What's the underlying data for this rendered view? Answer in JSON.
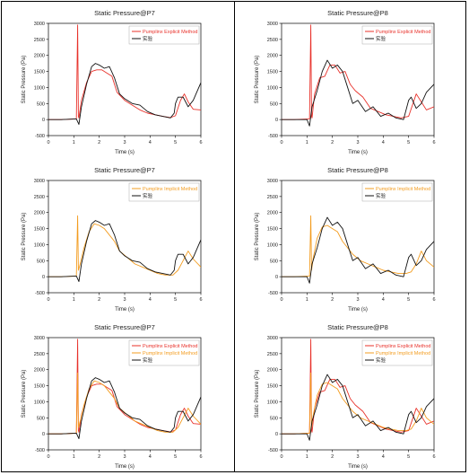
{
  "colors": {
    "red": "#e8312a",
    "orange": "#f39c1f",
    "black": "#111111"
  },
  "chart_data": [
    {
      "type": "line",
      "title": "Static Pressure@P7",
      "xlabel": "Time (s)",
      "ylabel": "Static Pressure (Pa)",
      "xlim": [
        0,
        6
      ],
      "ylim": [
        -500,
        3000
      ],
      "xticks": [
        "0",
        "1",
        "2",
        "3",
        "4",
        "5",
        "6"
      ],
      "yticks": [
        "-500",
        "0",
        "500",
        "1000",
        "1500",
        "2000",
        "2500",
        "3000"
      ],
      "legend_position": "top-right",
      "series": [
        {
          "name": "Pumplinx Explicit Method",
          "color": "red",
          "x": [
            0,
            0.5,
            1.1,
            1.15,
            1.18,
            1.2,
            1.3,
            1.5,
            1.7,
            1.9,
            2.1,
            2.3,
            2.5,
            2.7,
            3.0,
            3.3,
            3.6,
            3.9,
            4.2,
            4.5,
            4.8,
            5.0,
            5.2,
            5.35,
            5.5,
            5.7,
            6.0
          ],
          "y": [
            0,
            0,
            20,
            2950,
            100,
            50,
            600,
            1150,
            1500,
            1550,
            1550,
            1450,
            1350,
            850,
            600,
            450,
            300,
            200,
            150,
            100,
            60,
            120,
            600,
            800,
            550,
            320,
            300
          ]
        },
        {
          "name": "实验",
          "color": "black",
          "x": [
            0,
            0.5,
            1.1,
            1.2,
            1.3,
            1.5,
            1.7,
            1.85,
            2.0,
            2.2,
            2.4,
            2.6,
            2.8,
            3.0,
            3.3,
            3.6,
            3.9,
            4.2,
            4.5,
            4.8,
            4.95,
            5.0,
            5.1,
            5.3,
            5.5,
            5.7,
            6.0
          ],
          "y": [
            0,
            0,
            20,
            -150,
            400,
            1100,
            1650,
            1750,
            1700,
            1600,
            1650,
            1300,
            800,
            650,
            500,
            450,
            250,
            150,
            100,
            50,
            200,
            500,
            700,
            700,
            400,
            600,
            1150
          ]
        }
      ]
    },
    {
      "type": "line",
      "title": "Static Pressure@P8",
      "xlabel": "Time (s)",
      "ylabel": "Static Pressure (Pa)",
      "xlim": [
        0,
        6
      ],
      "ylim": [
        -500,
        3000
      ],
      "xticks": [
        "0",
        "1",
        "2",
        "3",
        "4",
        "5",
        "6"
      ],
      "yticks": [
        "-500",
        "0",
        "500",
        "1000",
        "1500",
        "2000",
        "2500",
        "3000"
      ],
      "legend_position": "top-right",
      "series": [
        {
          "name": "Pumplinx Explicit Method",
          "color": "red",
          "x": [
            0,
            0.5,
            1.1,
            1.15,
            1.18,
            1.2,
            1.3,
            1.5,
            1.7,
            1.9,
            2.1,
            2.3,
            2.5,
            2.7,
            2.9,
            3.2,
            3.5,
            3.8,
            4.1,
            4.4,
            4.7,
            5.0,
            5.3,
            5.5,
            5.7,
            6.0
          ],
          "y": [
            0,
            0,
            20,
            2950,
            100,
            50,
            800,
            1300,
            1350,
            1700,
            1700,
            1450,
            1500,
            1100,
            900,
            700,
            350,
            250,
            150,
            100,
            50,
            100,
            800,
            550,
            300,
            400
          ]
        },
        {
          "name": "实验",
          "color": "black",
          "x": [
            0,
            0.5,
            1.0,
            1.1,
            1.2,
            1.4,
            1.6,
            1.8,
            2.0,
            2.2,
            2.4,
            2.6,
            2.8,
            3.0,
            3.3,
            3.6,
            3.9,
            4.2,
            4.5,
            4.8,
            5.0,
            5.1,
            5.3,
            5.5,
            5.7,
            6.0
          ],
          "y": [
            0,
            0,
            0,
            -200,
            400,
            900,
            1500,
            1850,
            1600,
            1700,
            1500,
            1000,
            500,
            600,
            250,
            400,
            100,
            200,
            50,
            0,
            600,
            700,
            350,
            500,
            850,
            1100
          ]
        }
      ]
    },
    {
      "type": "line",
      "title": "Static Pressure@P7",
      "xlabel": "Time (s)",
      "ylabel": "Static Pressure (Pa)",
      "xlim": [
        0,
        6
      ],
      "ylim": [
        -500,
        3000
      ],
      "xticks": [
        "0",
        "1",
        "2",
        "3",
        "4",
        "5",
        "6"
      ],
      "yticks": [
        "-500",
        "0",
        "500",
        "1000",
        "1500",
        "2000",
        "2500",
        "3000"
      ],
      "legend_position": "top-right",
      "series": [
        {
          "name": "Pumplinx Implicit Method",
          "color": "orange",
          "x": [
            0,
            0.5,
            1.1,
            1.15,
            1.18,
            1.25,
            1.4,
            1.6,
            1.8,
            2.0,
            2.2,
            2.4,
            2.6,
            2.8,
            3.1,
            3.4,
            3.7,
            4.0,
            4.3,
            4.6,
            4.9,
            5.1,
            5.3,
            5.5,
            5.7,
            6.0
          ],
          "y": [
            0,
            0,
            20,
            1900,
            200,
            400,
            900,
            1400,
            1650,
            1600,
            1500,
            1300,
            1100,
            800,
            600,
            400,
            300,
            200,
            100,
            50,
            50,
            200,
            500,
            800,
            550,
            300
          ]
        },
        {
          "name": "实验",
          "color": "black",
          "x": [
            0,
            0.5,
            1.1,
            1.2,
            1.3,
            1.5,
            1.7,
            1.85,
            2.0,
            2.2,
            2.4,
            2.6,
            2.8,
            3.0,
            3.3,
            3.6,
            3.9,
            4.2,
            4.5,
            4.8,
            4.95,
            5.0,
            5.1,
            5.3,
            5.5,
            5.7,
            6.0
          ],
          "y": [
            0,
            0,
            20,
            -150,
            400,
            1100,
            1650,
            1750,
            1700,
            1600,
            1650,
            1300,
            800,
            650,
            500,
            450,
            250,
            150,
            100,
            50,
            200,
            500,
            700,
            700,
            400,
            600,
            1150
          ]
        }
      ]
    },
    {
      "type": "line",
      "title": "Static Pressure@P8",
      "xlabel": "Time (s)",
      "ylabel": "Static Pressure (Pa)",
      "xlim": [
        0,
        6
      ],
      "ylim": [
        -500,
        3000
      ],
      "xticks": [
        "0",
        "1",
        "2",
        "3",
        "4",
        "5",
        "6"
      ],
      "yticks": [
        "-500",
        "0",
        "500",
        "1000",
        "1500",
        "2000",
        "2500",
        "3000"
      ],
      "legend_position": "top-right",
      "series": [
        {
          "name": "Pumplinx Implicit Method",
          "color": "orange",
          "x": [
            0,
            0.5,
            1.1,
            1.15,
            1.18,
            1.25,
            1.4,
            1.6,
            1.8,
            2.0,
            2.2,
            2.4,
            2.6,
            2.8,
            3.1,
            3.4,
            3.7,
            4.0,
            4.3,
            4.6,
            4.9,
            5.1,
            5.3,
            5.5,
            5.7,
            6.0
          ],
          "y": [
            0,
            0,
            20,
            1900,
            200,
            600,
            1200,
            1550,
            1600,
            1500,
            1400,
            1100,
            900,
            700,
            500,
            400,
            300,
            200,
            150,
            100,
            100,
            150,
            400,
            800,
            500,
            300
          ]
        },
        {
          "name": "实验",
          "color": "black",
          "x": [
            0,
            0.5,
            1.0,
            1.1,
            1.2,
            1.4,
            1.6,
            1.8,
            2.0,
            2.2,
            2.4,
            2.6,
            2.8,
            3.0,
            3.3,
            3.6,
            3.9,
            4.2,
            4.5,
            4.8,
            5.0,
            5.1,
            5.3,
            5.5,
            5.7,
            6.0
          ],
          "y": [
            0,
            0,
            0,
            -200,
            400,
            900,
            1500,
            1850,
            1600,
            1700,
            1500,
            1000,
            500,
            600,
            250,
            400,
            100,
            200,
            50,
            0,
            600,
            700,
            350,
            500,
            850,
            1100
          ]
        }
      ]
    },
    {
      "type": "line",
      "title": "Static Pressure@P7",
      "xlabel": "Time (s)",
      "ylabel": "Static Pressure (Pa)",
      "xlim": [
        0,
        6
      ],
      "ylim": [
        -500,
        3000
      ],
      "xticks": [
        "0",
        "1",
        "2",
        "3",
        "4",
        "5",
        "6"
      ],
      "yticks": [
        "-500",
        "0",
        "500",
        "1000",
        "1500",
        "2000",
        "2500",
        "3000"
      ],
      "legend_position": "top-right",
      "series": [
        {
          "name": "Pumplinx Explicit Method",
          "color": "red",
          "x": [
            0,
            0.5,
            1.1,
            1.15,
            1.18,
            1.2,
            1.3,
            1.5,
            1.7,
            1.9,
            2.1,
            2.3,
            2.5,
            2.7,
            3.0,
            3.3,
            3.6,
            3.9,
            4.2,
            4.5,
            4.8,
            5.0,
            5.2,
            5.35,
            5.5,
            5.7,
            6.0
          ],
          "y": [
            0,
            0,
            20,
            2950,
            100,
            50,
            600,
            1150,
            1500,
            1550,
            1550,
            1450,
            1350,
            850,
            600,
            450,
            300,
            200,
            150,
            100,
            60,
            120,
            600,
            800,
            550,
            320,
            300
          ]
        },
        {
          "name": "Pumplinx Implicit Method",
          "color": "orange",
          "x": [
            0,
            0.5,
            1.1,
            1.15,
            1.18,
            1.25,
            1.4,
            1.6,
            1.8,
            2.0,
            2.2,
            2.4,
            2.6,
            2.8,
            3.1,
            3.4,
            3.7,
            4.0,
            4.3,
            4.6,
            4.9,
            5.1,
            5.3,
            5.5,
            5.7,
            6.0
          ],
          "y": [
            0,
            0,
            20,
            1900,
            200,
            400,
            900,
            1400,
            1650,
            1600,
            1500,
            1300,
            1100,
            800,
            600,
            400,
            300,
            200,
            100,
            50,
            50,
            200,
            500,
            800,
            550,
            300
          ]
        },
        {
          "name": "实验",
          "color": "black",
          "x": [
            0,
            0.5,
            1.1,
            1.2,
            1.3,
            1.5,
            1.7,
            1.85,
            2.0,
            2.2,
            2.4,
            2.6,
            2.8,
            3.0,
            3.3,
            3.6,
            3.9,
            4.2,
            4.5,
            4.8,
            4.95,
            5.0,
            5.1,
            5.3,
            5.5,
            5.7,
            6.0
          ],
          "y": [
            0,
            0,
            20,
            -150,
            400,
            1100,
            1650,
            1750,
            1700,
            1600,
            1650,
            1300,
            800,
            650,
            500,
            450,
            250,
            150,
            100,
            50,
            200,
            500,
            700,
            700,
            400,
            600,
            1150
          ]
        }
      ]
    },
    {
      "type": "line",
      "title": "Static Pressure@P8",
      "xlabel": "Time (s)",
      "ylabel": "Static Pressure (Pa)",
      "xlim": [
        0,
        6
      ],
      "ylim": [
        -500,
        3000
      ],
      "xticks": [
        "0",
        "1",
        "2",
        "3",
        "4",
        "5",
        "6"
      ],
      "yticks": [
        "-500",
        "0",
        "500",
        "1000",
        "1500",
        "2000",
        "2500",
        "3000"
      ],
      "legend_position": "top-right",
      "series": [
        {
          "name": "Pumplinx Explicit Method",
          "color": "red",
          "x": [
            0,
            0.5,
            1.1,
            1.15,
            1.18,
            1.2,
            1.3,
            1.5,
            1.7,
            1.9,
            2.1,
            2.3,
            2.5,
            2.7,
            2.9,
            3.2,
            3.5,
            3.8,
            4.1,
            4.4,
            4.7,
            5.0,
            5.3,
            5.5,
            5.7,
            6.0
          ],
          "y": [
            0,
            0,
            20,
            2950,
            100,
            50,
            800,
            1300,
            1350,
            1700,
            1700,
            1450,
            1500,
            1100,
            900,
            700,
            350,
            250,
            150,
            100,
            50,
            100,
            800,
            550,
            300,
            400
          ]
        },
        {
          "name": "Pumplinx Implicit Method",
          "color": "orange",
          "x": [
            0,
            0.5,
            1.1,
            1.15,
            1.18,
            1.25,
            1.4,
            1.6,
            1.8,
            2.0,
            2.2,
            2.4,
            2.6,
            2.8,
            3.1,
            3.4,
            3.7,
            4.0,
            4.3,
            4.6,
            4.9,
            5.1,
            5.3,
            5.5,
            5.7,
            6.0
          ],
          "y": [
            0,
            0,
            20,
            1900,
            200,
            600,
            1200,
            1550,
            1600,
            1500,
            1400,
            1100,
            900,
            700,
            500,
            400,
            300,
            200,
            150,
            100,
            100,
            150,
            400,
            800,
            500,
            300
          ]
        },
        {
          "name": "实验",
          "color": "black",
          "x": [
            0,
            0.5,
            1.0,
            1.1,
            1.2,
            1.4,
            1.6,
            1.8,
            2.0,
            2.2,
            2.4,
            2.6,
            2.8,
            3.0,
            3.3,
            3.6,
            3.9,
            4.2,
            4.5,
            4.8,
            5.0,
            5.1,
            5.3,
            5.5,
            5.7,
            6.0
          ],
          "y": [
            0,
            0,
            0,
            -200,
            400,
            900,
            1500,
            1850,
            1600,
            1700,
            1500,
            1000,
            500,
            600,
            250,
            400,
            100,
            200,
            50,
            0,
            600,
            700,
            350,
            500,
            850,
            1100
          ]
        }
      ]
    }
  ]
}
